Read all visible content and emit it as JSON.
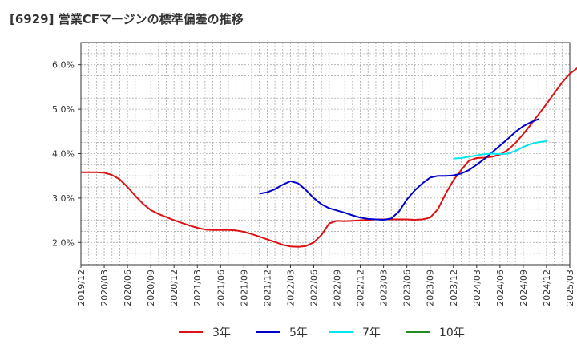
{
  "title": "[6929]  営業CFマージンの標準偏差の推移",
  "chart_data": {
    "type": "line",
    "title": "[6929]  営業CFマージンの標準偏差の推移",
    "xlabel": "",
    "ylabel": "",
    "ylim": [
      1.5,
      6.5
    ],
    "y_ticks": [
      "2.0%",
      "3.0%",
      "4.0%",
      "5.0%",
      "6.0%"
    ],
    "y_tick_values": [
      2.0,
      3.0,
      4.0,
      5.0,
      6.0
    ],
    "x_ticks": [
      "2019/12",
      "2020/03",
      "2020/06",
      "2020/09",
      "2020/12",
      "2021/03",
      "2021/06",
      "2021/09",
      "2021/12",
      "2022/03",
      "2022/06",
      "2022/09",
      "2022/12",
      "2023/03",
      "2023/06",
      "2023/09",
      "2023/12",
      "2024/03",
      "2024/06",
      "2024/09",
      "2024/12",
      "2025/03"
    ],
    "grid": true,
    "legend_position": "bottom",
    "series": [
      {
        "name": "3年",
        "color": "#dd1111",
        "start": "2019/12",
        "values": [
          3.58,
          3.58,
          3.58,
          3.57,
          3.52,
          3.42,
          3.25,
          3.05,
          2.87,
          2.73,
          2.64,
          2.57,
          2.5,
          2.44,
          2.38,
          2.33,
          2.29,
          2.28,
          2.28,
          2.28,
          2.27,
          2.24,
          2.19,
          2.13,
          2.07,
          2.01,
          1.95,
          1.91,
          1.9,
          1.92,
          2.0,
          2.17,
          2.43,
          2.49,
          2.48,
          2.49,
          2.5,
          2.51,
          2.52,
          2.52,
          2.52,
          2.52,
          2.52,
          2.51,
          2.52,
          2.56,
          2.75,
          3.1,
          3.4,
          3.63,
          3.84,
          3.9,
          3.91,
          3.93,
          3.98,
          4.08,
          4.24,
          4.44,
          4.66,
          4.89,
          5.12,
          5.36,
          5.6,
          5.8,
          5.93,
          5.99,
          6.0
        ]
      },
      {
        "name": "5年",
        "color": "#0000cc",
        "start": "2021/11",
        "values": [
          3.1,
          3.13,
          3.2,
          3.3,
          3.38,
          3.33,
          3.18,
          3.0,
          2.86,
          2.77,
          2.72,
          2.67,
          2.61,
          2.56,
          2.53,
          2.52,
          2.51,
          2.54,
          2.7,
          2.97,
          3.17,
          3.33,
          3.46,
          3.5,
          3.5,
          3.51,
          3.55,
          3.63,
          3.75,
          3.88,
          4.03,
          4.18,
          4.33,
          4.49,
          4.62,
          4.71,
          4.78
        ]
      },
      {
        "name": "7年",
        "color": "#00e5ee",
        "start": "2023/12",
        "values": [
          3.89,
          3.9,
          3.93,
          3.96,
          3.99,
          4.0,
          3.99,
          4.0,
          4.06,
          4.15,
          4.22,
          4.26,
          4.28
        ]
      },
      {
        "name": "10年",
        "color": "#228b22",
        "start": "2019/12",
        "values": []
      }
    ]
  }
}
